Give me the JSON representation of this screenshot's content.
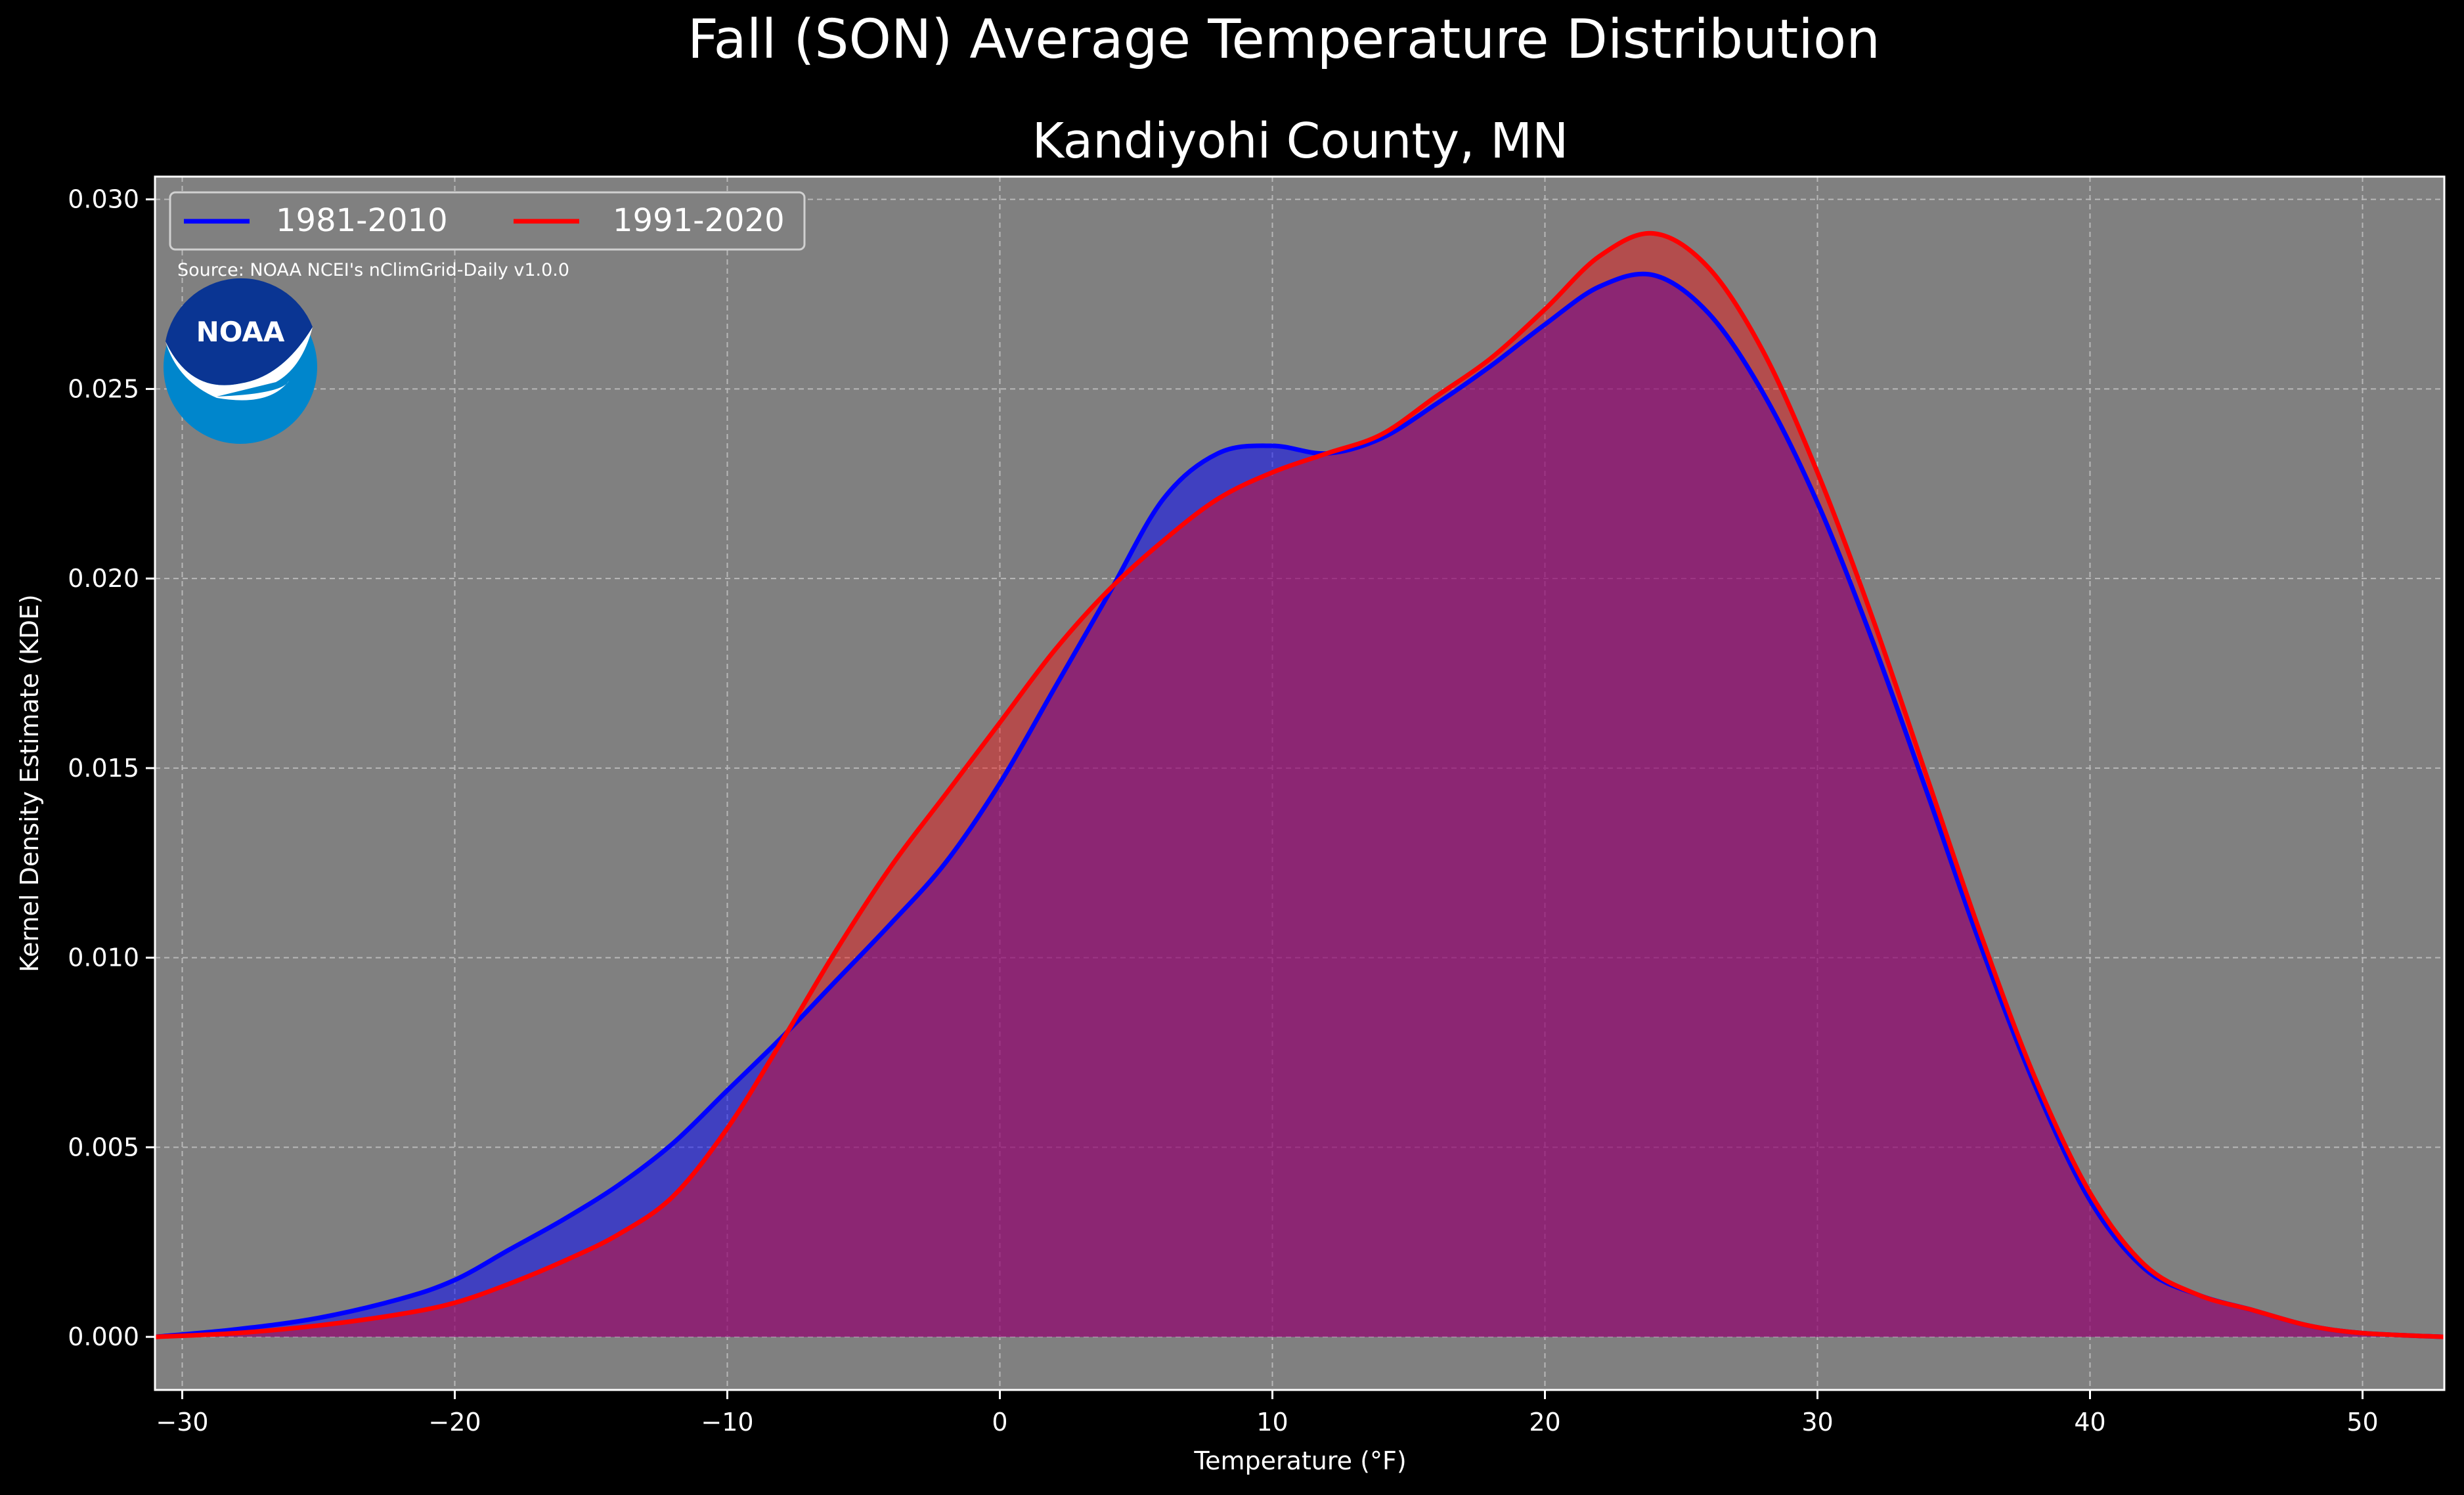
{
  "figure": {
    "suptitle": "Fall (SON) Average Temperature Distribution",
    "title": "Kandiyohi County, MN",
    "source_note": "Source: NOAA NCEI's nClimGrid-Daily v1.0.0",
    "logo_text": "NOAA",
    "colors": {
      "background": "#000000",
      "axes_face": "#808080",
      "grid": "#b8b8b8",
      "text": "#ffffff",
      "logo_outer": "#0086cc",
      "logo_inner": "#0a3593"
    }
  },
  "chart_data": {
    "type": "area",
    "xlabel": "Temperature (°F)",
    "ylabel": "Kernel Density Estimate (KDE)",
    "xlim": [
      -31,
      53
    ],
    "ylim": [
      -0.0014,
      0.0306
    ],
    "xticks": [
      -30,
      -20,
      -10,
      0,
      10,
      20,
      30,
      40,
      50
    ],
    "xtick_labels": [
      "−30",
      "−20",
      "−10",
      "0",
      "10",
      "20",
      "30",
      "40",
      "50"
    ],
    "yticks": [
      0.0,
      0.005,
      0.01,
      0.015,
      0.02,
      0.025,
      0.03
    ],
    "ytick_labels": [
      "0.000",
      "0.005",
      "0.010",
      "0.015",
      "0.020",
      "0.025",
      "0.030"
    ],
    "grid": true,
    "legend": {
      "location": "upper left",
      "columns": 2
    },
    "series": [
      {
        "name": "1981-2010",
        "color": "#0000ff",
        "fill": "#0000ff",
        "fill_opacity": 0.5,
        "x": [
          -31,
          -28,
          -25,
          -22,
          -20,
          -18,
          -16,
          -14,
          -12,
          -10,
          -8,
          -6,
          -4,
          -2,
          0,
          2,
          4,
          6,
          8,
          10,
          12,
          14,
          16,
          18,
          20,
          22,
          24,
          26,
          28,
          30,
          32,
          34,
          36,
          38,
          40,
          42,
          44,
          46,
          48,
          50,
          53
        ],
        "y": [
          0.0,
          0.0002,
          0.0005,
          0.001,
          0.0015,
          0.0023,
          0.0031,
          0.004,
          0.0051,
          0.0065,
          0.0079,
          0.0094,
          0.0109,
          0.0125,
          0.0146,
          0.0171,
          0.0196,
          0.0221,
          0.0233,
          0.0235,
          0.0233,
          0.0237,
          0.0246,
          0.0256,
          0.0267,
          0.0277,
          0.028,
          0.027,
          0.0249,
          0.022,
          0.0184,
          0.0144,
          0.0103,
          0.0066,
          0.0036,
          0.0018,
          0.0011,
          0.0007,
          0.0003,
          0.0001,
          0.0
        ]
      },
      {
        "name": "1991-2020",
        "color": "#ff0000",
        "fill": "#ff0000",
        "fill_opacity": 0.4,
        "x": [
          -31,
          -28,
          -25,
          -22,
          -20,
          -18,
          -16,
          -14,
          -12,
          -10,
          -8,
          -6,
          -4,
          -2,
          0,
          2,
          4,
          6,
          8,
          10,
          12,
          14,
          16,
          18,
          20,
          22,
          24,
          26,
          28,
          30,
          32,
          34,
          36,
          38,
          40,
          42,
          44,
          46,
          48,
          50,
          53
        ],
        "y": [
          0.0,
          0.0001,
          0.0003,
          0.0006,
          0.0009,
          0.0014,
          0.002,
          0.0027,
          0.0037,
          0.0055,
          0.0078,
          0.0102,
          0.0124,
          0.0143,
          0.0162,
          0.0181,
          0.0197,
          0.021,
          0.0221,
          0.0228,
          0.0233,
          0.0238,
          0.0248,
          0.0258,
          0.0271,
          0.0285,
          0.0291,
          0.0282,
          0.026,
          0.0228,
          0.019,
          0.0148,
          0.0106,
          0.0068,
          0.0038,
          0.0019,
          0.0011,
          0.0007,
          0.0003,
          0.0001,
          0.0
        ]
      }
    ]
  }
}
